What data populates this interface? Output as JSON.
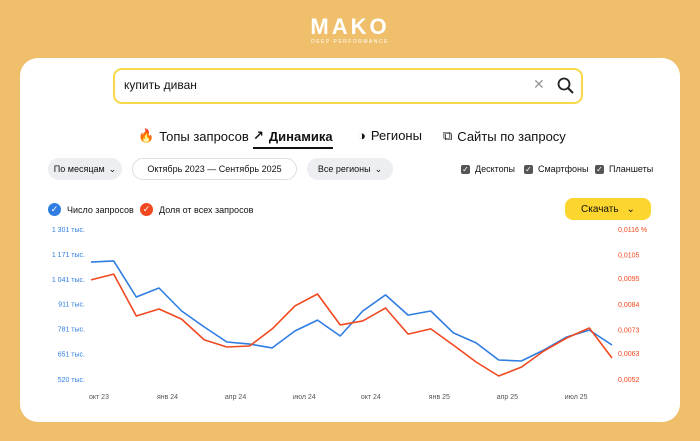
{
  "logo": {
    "title": "MAKO",
    "subtitle": "DEEP PERFORMANCE"
  },
  "search": {
    "query": "купить диван"
  },
  "tabs": [
    "Топы запросов",
    "Динамика",
    "Регионы",
    "Сайты по запросу"
  ],
  "filters": {
    "period_type": "По месяцам",
    "period": "Октябрь 2023 — Сентябрь 2025",
    "region": "Все регионы",
    "devices": [
      "Десктопы",
      "Смартфоны",
      "Планшеты"
    ]
  },
  "download": "Скачать",
  "chart_data": {
    "type": "line",
    "categories": [
      "окт 23",
      null,
      null,
      "янв 24",
      null,
      null,
      "апр 24",
      null,
      null,
      "июл 24",
      null,
      null,
      "окт 24",
      null,
      null,
      "янв 25",
      null,
      null,
      "апр 25",
      null,
      null,
      "июл 25",
      null,
      null
    ],
    "series": [
      {
        "name": "Число запросов",
        "color": "#2f7de1",
        "values": [
          1134000,
          1140000,
          952000,
          999000,
          879000,
          796000,
          718000,
          707000,
          687000,
          775000,
          832000,
          749000,
          879000,
          963000,
          858000,
          879000,
          765000,
          713000,
          624000,
          619000,
          676000,
          744000,
          780000,
          702000
        ]
      },
      {
        "name": "Доля от всех запросов",
        "color": "#f0481f",
        "axis": "y2",
        "values": [
          0.00947,
          0.00972,
          0.00793,
          0.00823,
          0.0078,
          0.00691,
          0.00661,
          0.00665,
          0.00738,
          0.00836,
          0.00887,
          0.00755,
          0.00772,
          0.00827,
          0.00716,
          0.00738,
          0.00669,
          0.00597,
          0.00537,
          0.00575,
          0.00644,
          0.00699,
          0.00742,
          0.00614
        ]
      }
    ],
    "ylim": [
      520000,
      1301000
    ],
    "yticks": [
      {
        "value": 520000,
        "label": "520 тыс."
      },
      {
        "value": 651000,
        "label": "651 тыс."
      },
      {
        "value": 781000,
        "label": "781 тыс."
      },
      {
        "value": 911000,
        "label": "911 тыс."
      },
      {
        "value": 1041000,
        "label": "1 041 тыс."
      },
      {
        "value": 1171000,
        "label": "1 171 тыс."
      },
      {
        "value": 1301000,
        "label": "1 301 тыс."
      }
    ],
    "y2lim": [
      0.0052,
      0.0116
    ],
    "y2ticks": [
      {
        "value": 0.0052,
        "label": "0,0052"
      },
      {
        "value": 0.0063,
        "label": "0,0063"
      },
      {
        "value": 0.0073,
        "label": "0,0073"
      },
      {
        "value": 0.0084,
        "label": "0,0084"
      },
      {
        "value": 0.0095,
        "label": "0,0095"
      },
      {
        "value": 0.0105,
        "label": "0,0105"
      },
      {
        "value": 0.0116,
        "label": "0,0116 %"
      }
    ],
    "grid": false
  }
}
